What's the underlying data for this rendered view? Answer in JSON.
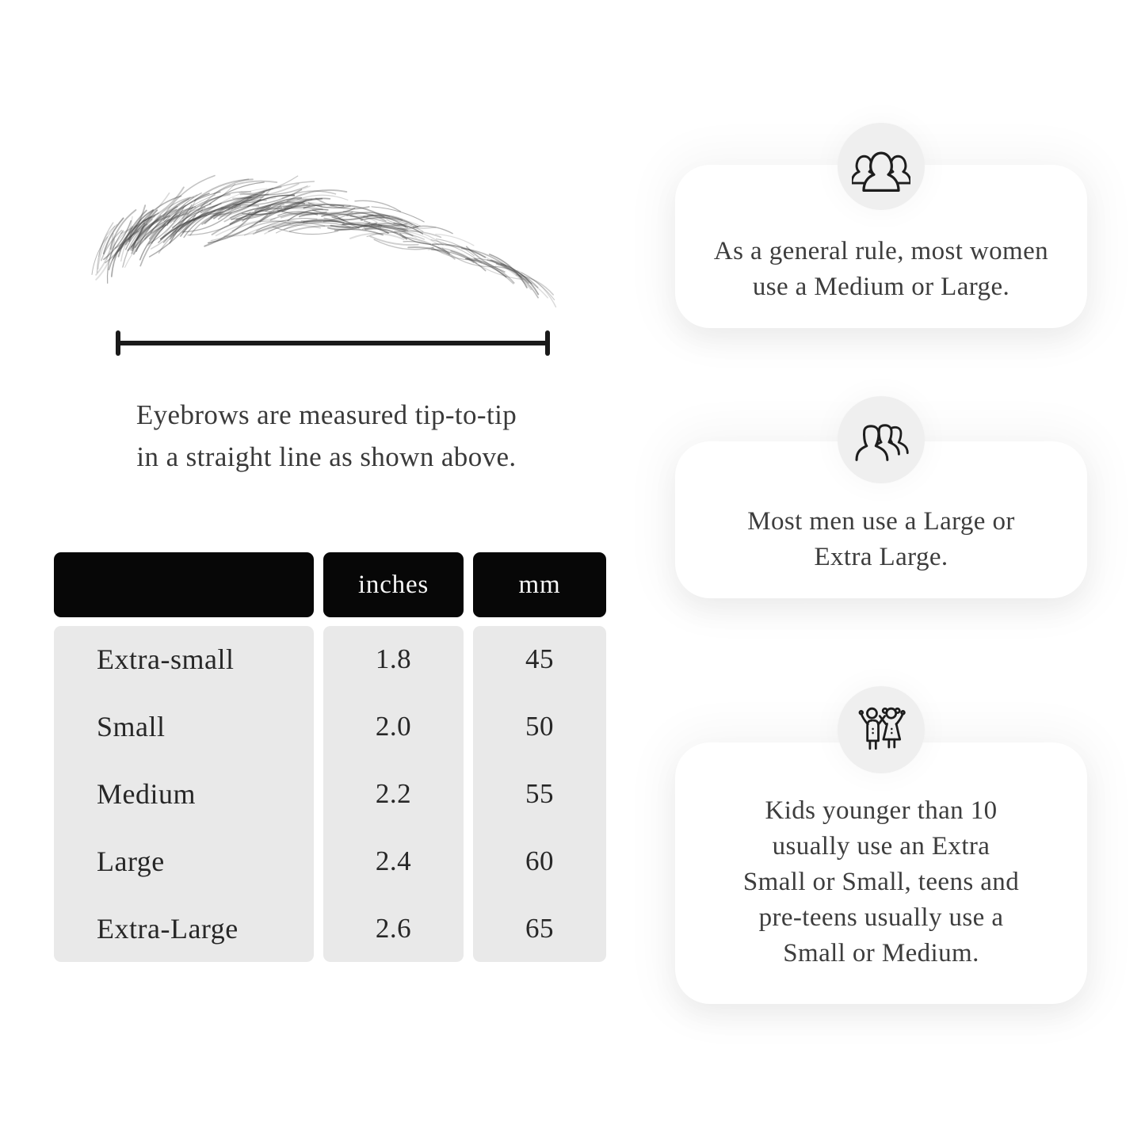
{
  "diagram": {
    "caption_lines": [
      "Eyebrows are measured tip-to-tip",
      "in a straight line as shown above."
    ]
  },
  "size_table": {
    "header": {
      "size_label": "",
      "inches_label": "inches",
      "mm_label": "mm"
    },
    "rows": [
      {
        "label": "Extra-small",
        "inches": "1.8",
        "mm": "45"
      },
      {
        "label": "Small",
        "inches": "2.0",
        "mm": "50"
      },
      {
        "label": "Medium",
        "inches": "2.2",
        "mm": "55"
      },
      {
        "label": "Large",
        "inches": "2.4",
        "mm": "60"
      },
      {
        "label": "Extra-Large",
        "inches": "2.6",
        "mm": "65"
      }
    ]
  },
  "info_cards": [
    {
      "icon": "women-group-icon",
      "lines": [
        "As a general rule, most women",
        "use a Medium or Large."
      ]
    },
    {
      "icon": "men-group-icon",
      "lines": [
        "Most men use a Large or",
        "Extra Large."
      ]
    },
    {
      "icon": "kids-icon",
      "lines": [
        "Kids younger than 10",
        "usually use an Extra",
        "Small or Small, teens and",
        "pre-teens usually use a",
        "Small or Medium."
      ]
    }
  ],
  "colors": {
    "table_header_bg": "#070707",
    "table_header_text": "#f7f7f7",
    "table_body_bg": "#e9e9e9",
    "icon_circle_bg": "#efefef",
    "card_bg": "#ffffff",
    "body_text": "#3b3b3b",
    "line": "#1a1a1a"
  }
}
